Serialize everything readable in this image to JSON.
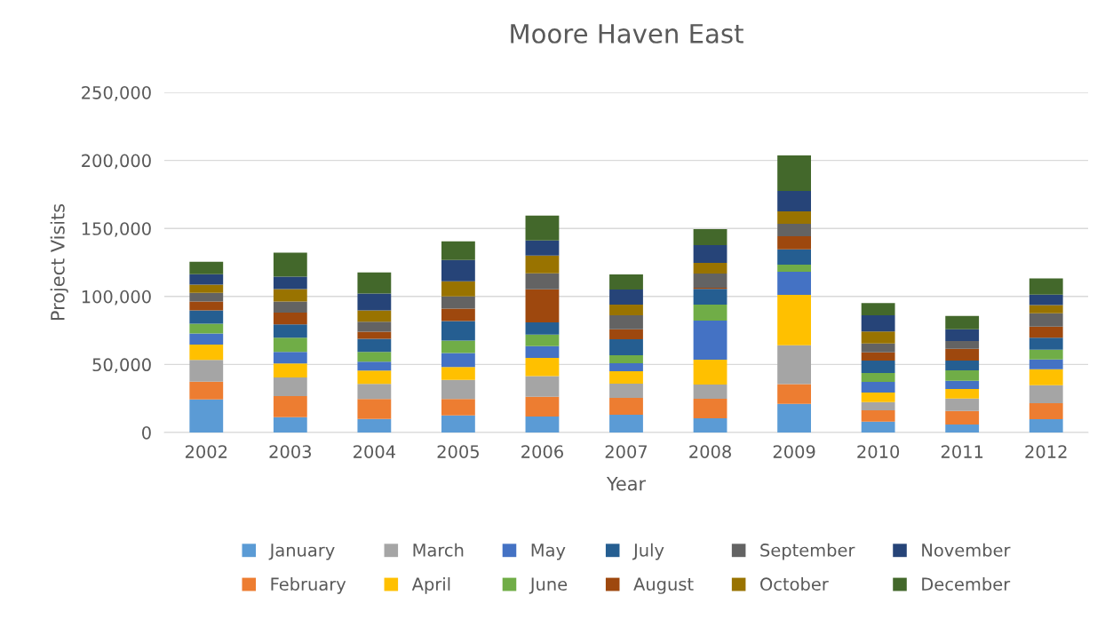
{
  "chart_data": {
    "type": "bar",
    "title": "Moore Haven East",
    "xlabel": "Year",
    "ylabel": "Project Visits",
    "stacked": true,
    "categories": [
      "2002",
      "2003",
      "2004",
      "2005",
      "2006",
      "2007",
      "2008",
      "2009",
      "2010",
      "2011",
      "2012"
    ],
    "series": [
      {
        "name": "January",
        "color": "#5b9bd5",
        "values": [
          24300,
          11300,
          10000,
          12600,
          11800,
          13100,
          10400,
          21100,
          8000,
          5900,
          9800
        ]
      },
      {
        "name": "February",
        "color": "#ed7d31",
        "values": [
          13000,
          15400,
          14700,
          12100,
          14400,
          12400,
          14400,
          14400,
          8300,
          10000,
          11800
        ]
      },
      {
        "name": "March",
        "color": "#a5a5a5",
        "values": [
          16000,
          13700,
          11100,
          13900,
          15200,
          10400,
          10400,
          28700,
          6100,
          9100,
          13100
        ]
      },
      {
        "name": "April",
        "color": "#ffc000",
        "values": [
          11300,
          10400,
          9700,
          9500,
          13500,
          9100,
          18300,
          37000,
          7000,
          7000,
          11800
        ]
      },
      {
        "name": "May",
        "color": "#4472c4",
        "values": [
          8200,
          8400,
          6500,
          10400,
          8500,
          5900,
          28700,
          17000,
          7800,
          6100,
          7200
        ]
      },
      {
        "name": "June",
        "color": "#70ad47",
        "values": [
          7200,
          10400,
          7200,
          9100,
          8500,
          5900,
          11800,
          5200,
          6500,
          7600,
          7200
        ]
      },
      {
        "name": "July",
        "color": "#255e91",
        "values": [
          9700,
          9800,
          9700,
          14300,
          9100,
          11800,
          11500,
          11300,
          9100,
          7200,
          8700
        ]
      },
      {
        "name": "August",
        "color": "#9e480e",
        "values": [
          6500,
          8700,
          5200,
          9100,
          24200,
          7200,
          900,
          9600,
          6100,
          8700,
          8300
        ]
      },
      {
        "name": "September",
        "color": "#636363",
        "values": [
          6500,
          8200,
          7400,
          9100,
          11800,
          10400,
          10400,
          9100,
          6500,
          5700,
          9800
        ]
      },
      {
        "name": "October",
        "color": "#997300",
        "values": [
          5900,
          9100,
          8200,
          11100,
          13100,
          7800,
          7800,
          9100,
          8900,
          0,
          5900
        ]
      },
      {
        "name": "November",
        "color": "#264478",
        "values": [
          7800,
          9100,
          12400,
          15600,
          11100,
          11100,
          13100,
          15000,
          11800,
          8500,
          7800
        ]
      },
      {
        "name": "December",
        "color": "#43682b",
        "values": [
          9100,
          17600,
          15600,
          13700,
          18300,
          11100,
          11800,
          26100,
          9100,
          9800,
          11800
        ]
      }
    ],
    "ylim": [
      0,
      250000
    ],
    "yticks": [
      {
        "value": 0,
        "label": "0"
      },
      {
        "value": 50000,
        "label": "50,000"
      },
      {
        "value": 100000,
        "label": "100,000"
      },
      {
        "value": 150000,
        "label": "150,000"
      },
      {
        "value": 200000,
        "label": "200,000"
      },
      {
        "value": 250000,
        "label": "250,000"
      }
    ],
    "grid": "y",
    "legend": "bottom"
  }
}
